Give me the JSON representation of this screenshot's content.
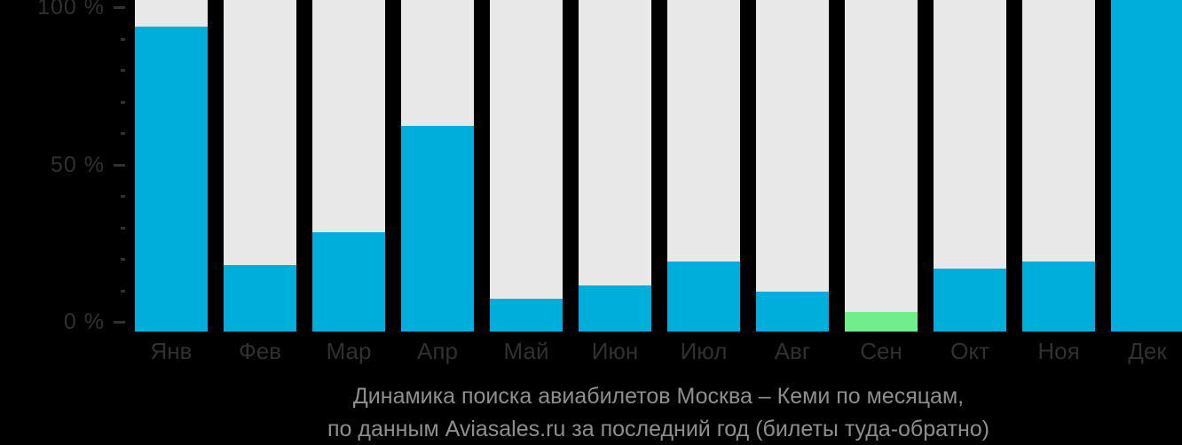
{
  "chart_data": {
    "type": "bar",
    "title": "Динамика поиска авиабилетов Москва – Кеми по месяцам,",
    "subtitle": "по данным Aviasales.ru за последний год (билеты туда-обратно)",
    "categories": [
      "Янв",
      "Фев",
      "Мар",
      "Апр",
      "Май",
      "Июн",
      "Июл",
      "Авг",
      "Сен",
      "Окт",
      "Ноя",
      "Дек"
    ],
    "values": [
      92,
      20,
      30,
      62,
      10,
      14,
      21,
      12,
      6,
      19,
      21,
      100
    ],
    "unit": "%",
    "xlabel": "",
    "ylabel": "",
    "ylim": [
      0,
      100
    ],
    "y_tick_labels": [
      "100 %",
      "50 %",
      "0 %"
    ],
    "y_tick_values": [
      100,
      50,
      0
    ],
    "minor_tick_step": 10,
    "grid": false,
    "legend": false,
    "highlighted_category": "Сен",
    "highlighted_index": 8,
    "colors": {
      "bar": "#00aedc",
      "highlight": "#6fee8b",
      "track": "#e8e8e8",
      "background": "#000000",
      "axis_text": "#303030",
      "caption_text": "#8e8e8e"
    }
  }
}
